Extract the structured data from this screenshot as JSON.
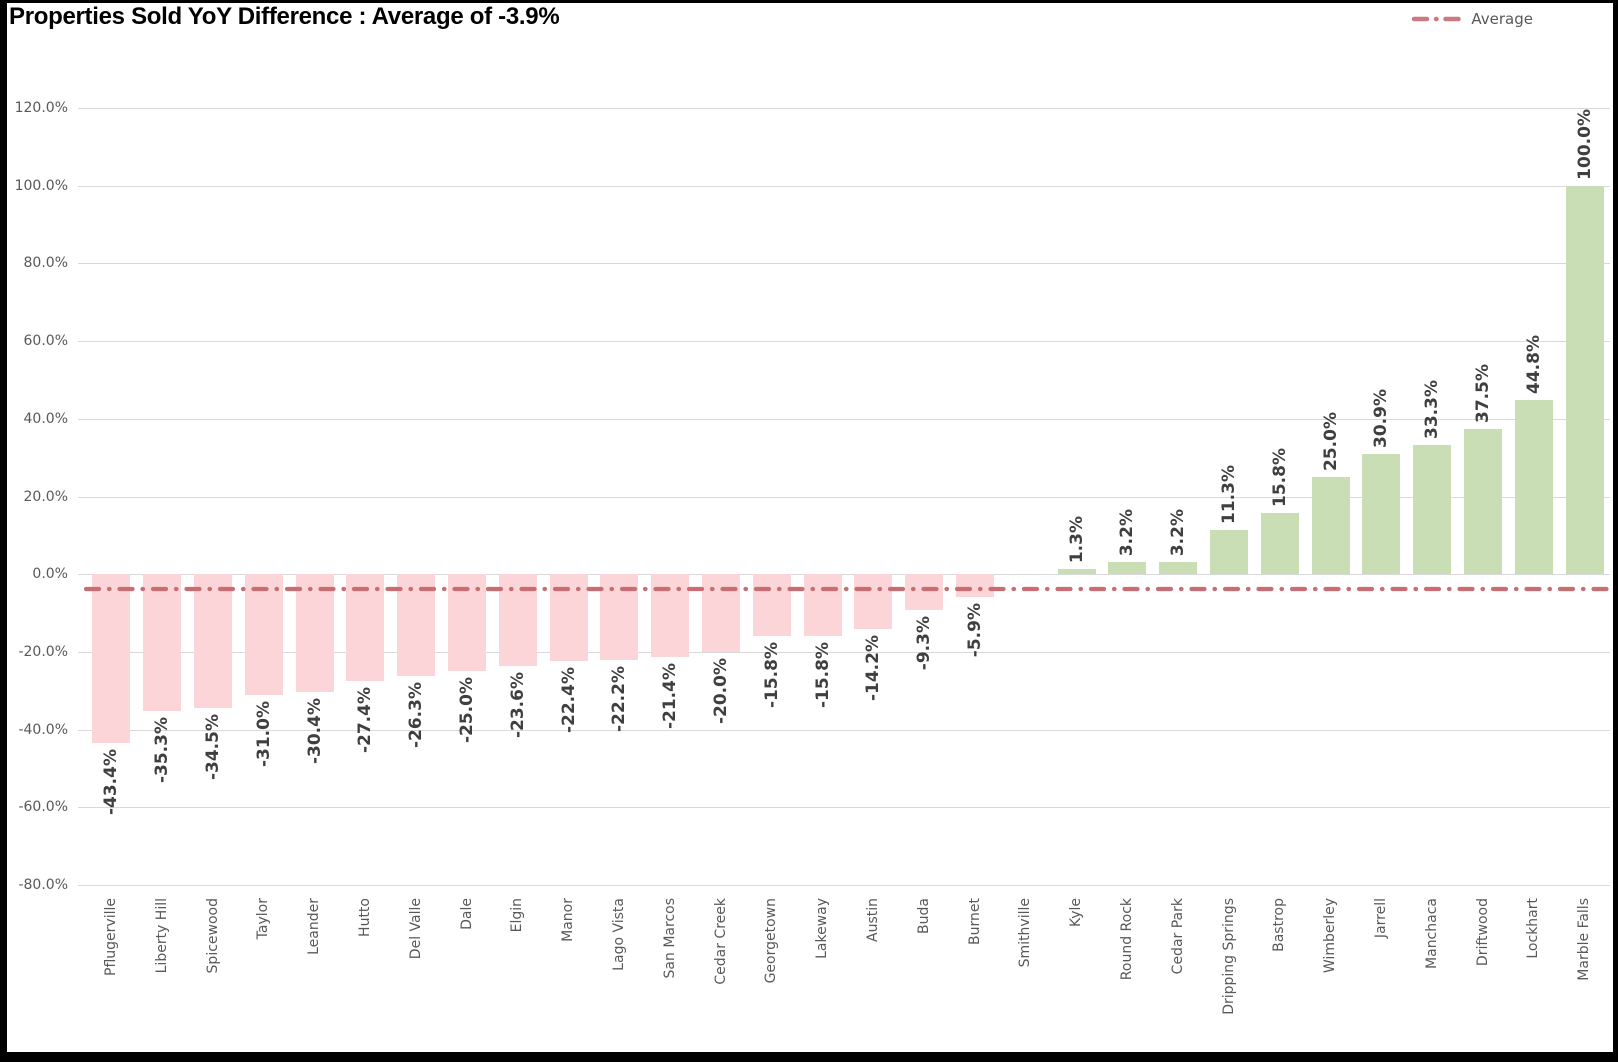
{
  "chart_data": {
    "type": "bar",
    "title": "Properties Sold YoY Difference : Average of -3.9%",
    "categories": [
      "Pflugerville",
      "Liberty Hill",
      "Spicewood",
      "Taylor",
      "Leander",
      "Hutto",
      "Del Valle",
      "Dale",
      "Elgin",
      "Manor",
      "Lago Vista",
      "San Marcos",
      "Cedar Creek",
      "Georgetown",
      "Lakeway",
      "Austin",
      "Buda",
      "Burnet",
      "Smithville",
      "Kyle",
      "Round Rock",
      "Cedar Park",
      "Dripping Springs",
      "Bastrop",
      "Wimberley",
      "Jarrell",
      "Manchaca",
      "Driftwood",
      "Lockhart",
      "Marble Falls"
    ],
    "values": [
      -43.4,
      -35.3,
      -34.5,
      -31.0,
      -30.4,
      -27.4,
      -26.3,
      -25.0,
      -23.6,
      -22.4,
      -22.2,
      -21.4,
      -20.0,
      -15.8,
      -15.8,
      -14.2,
      -9.3,
      -5.9,
      0.0,
      1.3,
      3.2,
      3.2,
      11.3,
      15.8,
      25.0,
      30.9,
      33.3,
      37.5,
      44.8,
      100.0
    ],
    "data_labels": [
      "-43.4%",
      "-35.3%",
      "-34.5%",
      "-31.0%",
      "-30.4%",
      "-27.4%",
      "-26.3%",
      "-25.0%",
      "-23.6%",
      "-22.4%",
      "-22.2%",
      "-21.4%",
      "-20.0%",
      "-15.8%",
      "-15.8%",
      "-14.2%",
      "-9.3%",
      "-5.9%",
      "",
      "1.3%",
      "3.2%",
      "3.2%",
      "11.3%",
      "15.8%",
      "25.0%",
      "30.9%",
      "33.3%",
      "37.5%",
      "44.8%",
      "100.0%"
    ],
    "average_value": -3.9,
    "legend": {
      "label": "Average",
      "position": "top-right"
    },
    "y_ticks": [
      "120.0%",
      "100.0%",
      "80.0%",
      "60.0%",
      "40.0%",
      "20.0%",
      "0.0%",
      "-20.0%",
      "-40.0%",
      "-60.0%",
      "-80.0%"
    ],
    "ylim": [
      -80,
      120
    ],
    "y_step": 20,
    "grid": true,
    "colors": {
      "negative_bar": "#fbd5d7",
      "positive_bar": "#cadeb5",
      "average_line": "#c96d72",
      "gridline": "#d9d9d9",
      "axis_text": "#595959",
      "value_label_text": "#3f3f3f",
      "title_text": "#000000",
      "background": "#ffffff",
      "border": "#000000"
    }
  }
}
